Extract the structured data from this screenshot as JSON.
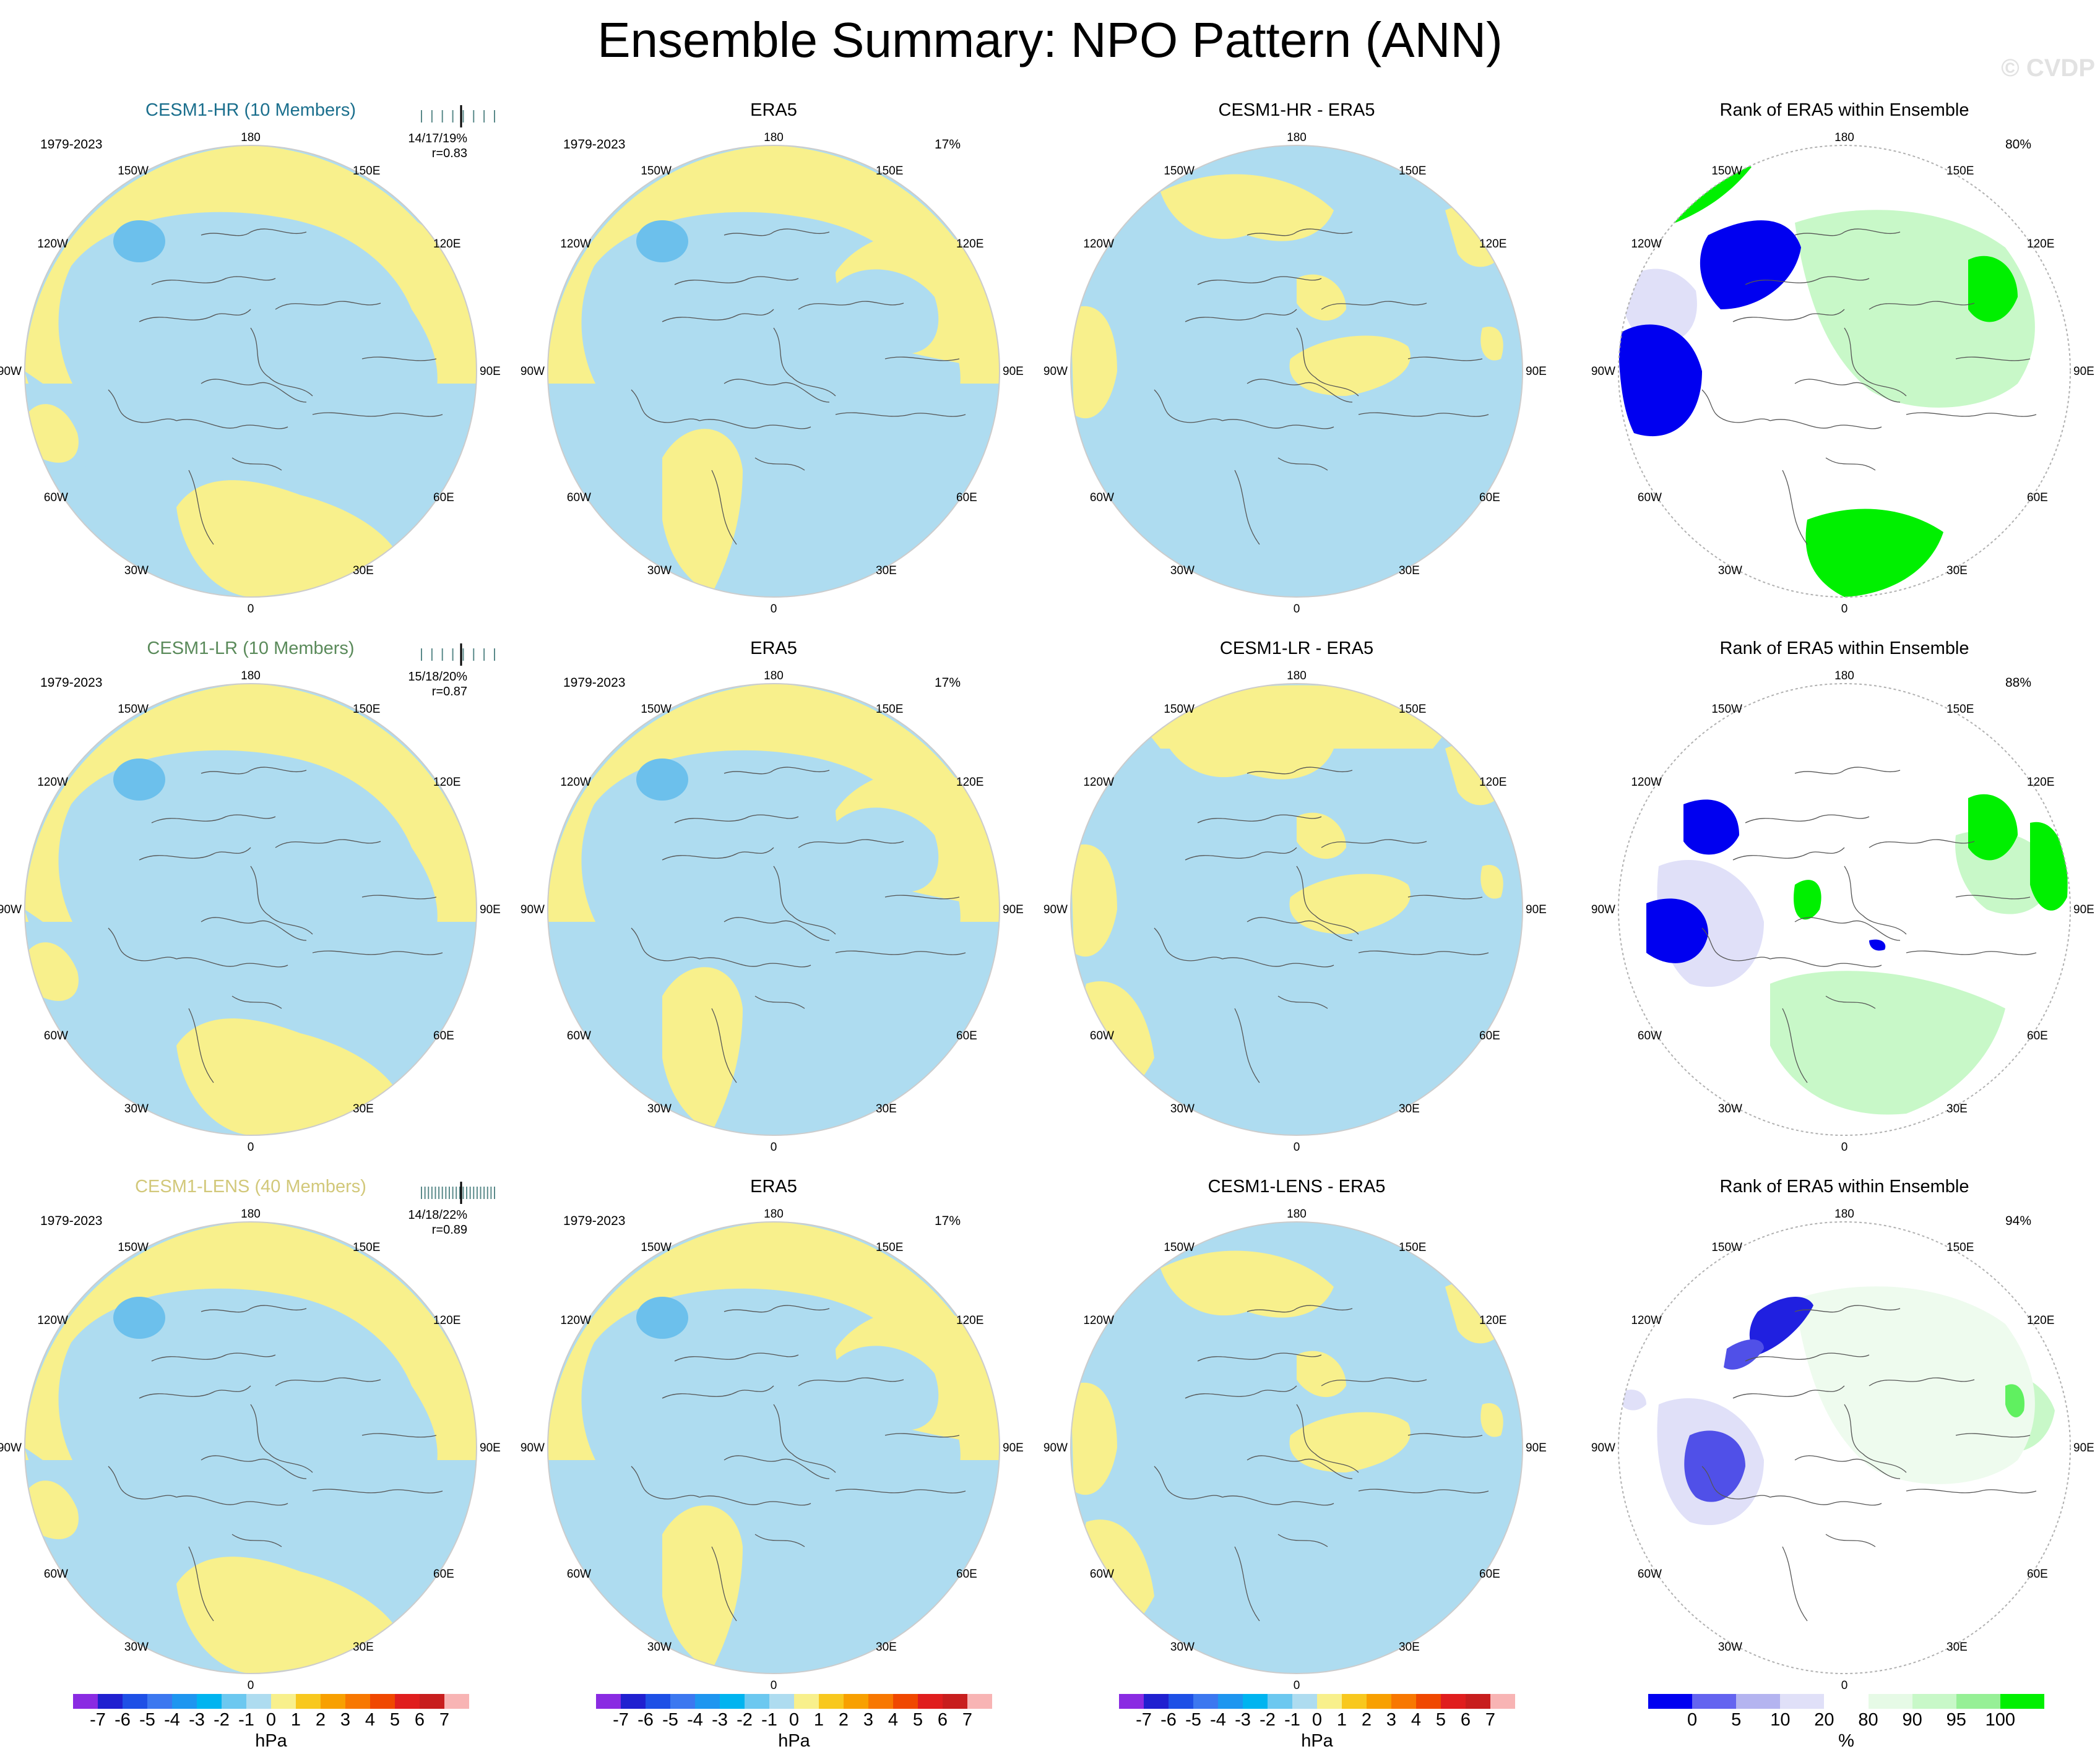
{
  "title": "Ensemble Summary: NPO Pattern (ANN)",
  "watermark": "© CVDP",
  "map_labels": {
    "top": "180",
    "bottom": "0",
    "tl1": "150W",
    "tr1": "150E",
    "tl2": "120W",
    "tr2": "120E",
    "l": "90W",
    "r": "90E",
    "bl2": "60W",
    "br2": "60E",
    "bl1": "30W",
    "br1": "30E"
  },
  "colors": {
    "ocean_blue": "#aedcf0",
    "yellow": "#f8f08c",
    "center_blue": "#6cc0ec",
    "rank_green": "#00f000",
    "rank_lightgreen": "#c8f8c8",
    "rank_blue": "#0000f0",
    "rank_lightblue": "#e0e0f8"
  },
  "rows": [
    {
      "model": {
        "title": "CESM1-HR (10 Members)",
        "title_color": "#1b6f8d",
        "period": "1979-2023",
        "stats": "14/17/19%",
        "corr": "r=0.83"
      },
      "obs": {
        "title": "ERA5",
        "period": "1979-2023",
        "pct": "17%"
      },
      "diff": {
        "title": "CESM1-HR - ERA5"
      },
      "rank": {
        "title": "Rank of ERA5 within Ensemble",
        "pct": "80%"
      }
    },
    {
      "model": {
        "title": "CESM1-LR (10 Members)",
        "title_color": "#5a8a5a",
        "period": "1979-2023",
        "stats": "15/18/20%",
        "corr": "r=0.87"
      },
      "obs": {
        "title": "ERA5",
        "period": "1979-2023",
        "pct": "17%"
      },
      "diff": {
        "title": "CESM1-LR - ERA5"
      },
      "rank": {
        "title": "Rank of ERA5 within Ensemble",
        "pct": "88%"
      }
    },
    {
      "model": {
        "title": "CESM1-LENS (40 Members)",
        "title_color": "#d2c87a",
        "period": "1979-2023",
        "stats": "14/18/22%",
        "corr": "r=0.89"
      },
      "obs": {
        "title": "ERA5",
        "period": "1979-2023",
        "pct": "17%"
      },
      "diff": {
        "title": "CESM1-LENS - ERA5"
      },
      "rank": {
        "title": "Rank of ERA5 within Ensemble",
        "pct": "94%"
      }
    }
  ],
  "hpa_legend": {
    "unit": "hPa",
    "ticks": [
      "-7",
      "-6",
      "-5",
      "-4",
      "-3",
      "-2",
      "-1",
      "0",
      "1",
      "2",
      "3",
      "4",
      "5",
      "6",
      "7"
    ],
    "colors": [
      "#8a2be2",
      "#2020d0",
      "#1e50e6",
      "#3c78f0",
      "#1e96f0",
      "#00b4f0",
      "#6cc8f0",
      "#aedcf0",
      "#f8f08c",
      "#f8c81e",
      "#f8a000",
      "#f87800",
      "#f04800",
      "#e01e1e",
      "#c81e1e",
      "#f8b4b4"
    ]
  },
  "pct_legend": {
    "unit": "%",
    "ticks": [
      "0",
      "5",
      "10",
      "20",
      "80",
      "90",
      "95",
      "100"
    ],
    "colors": [
      "#0000f0",
      "#6464f0",
      "#b4b4f0",
      "#e0e0f8",
      "#ffffff",
      "#e6fae6",
      "#c8f8c8",
      "#96f096",
      "#00f000"
    ]
  }
}
